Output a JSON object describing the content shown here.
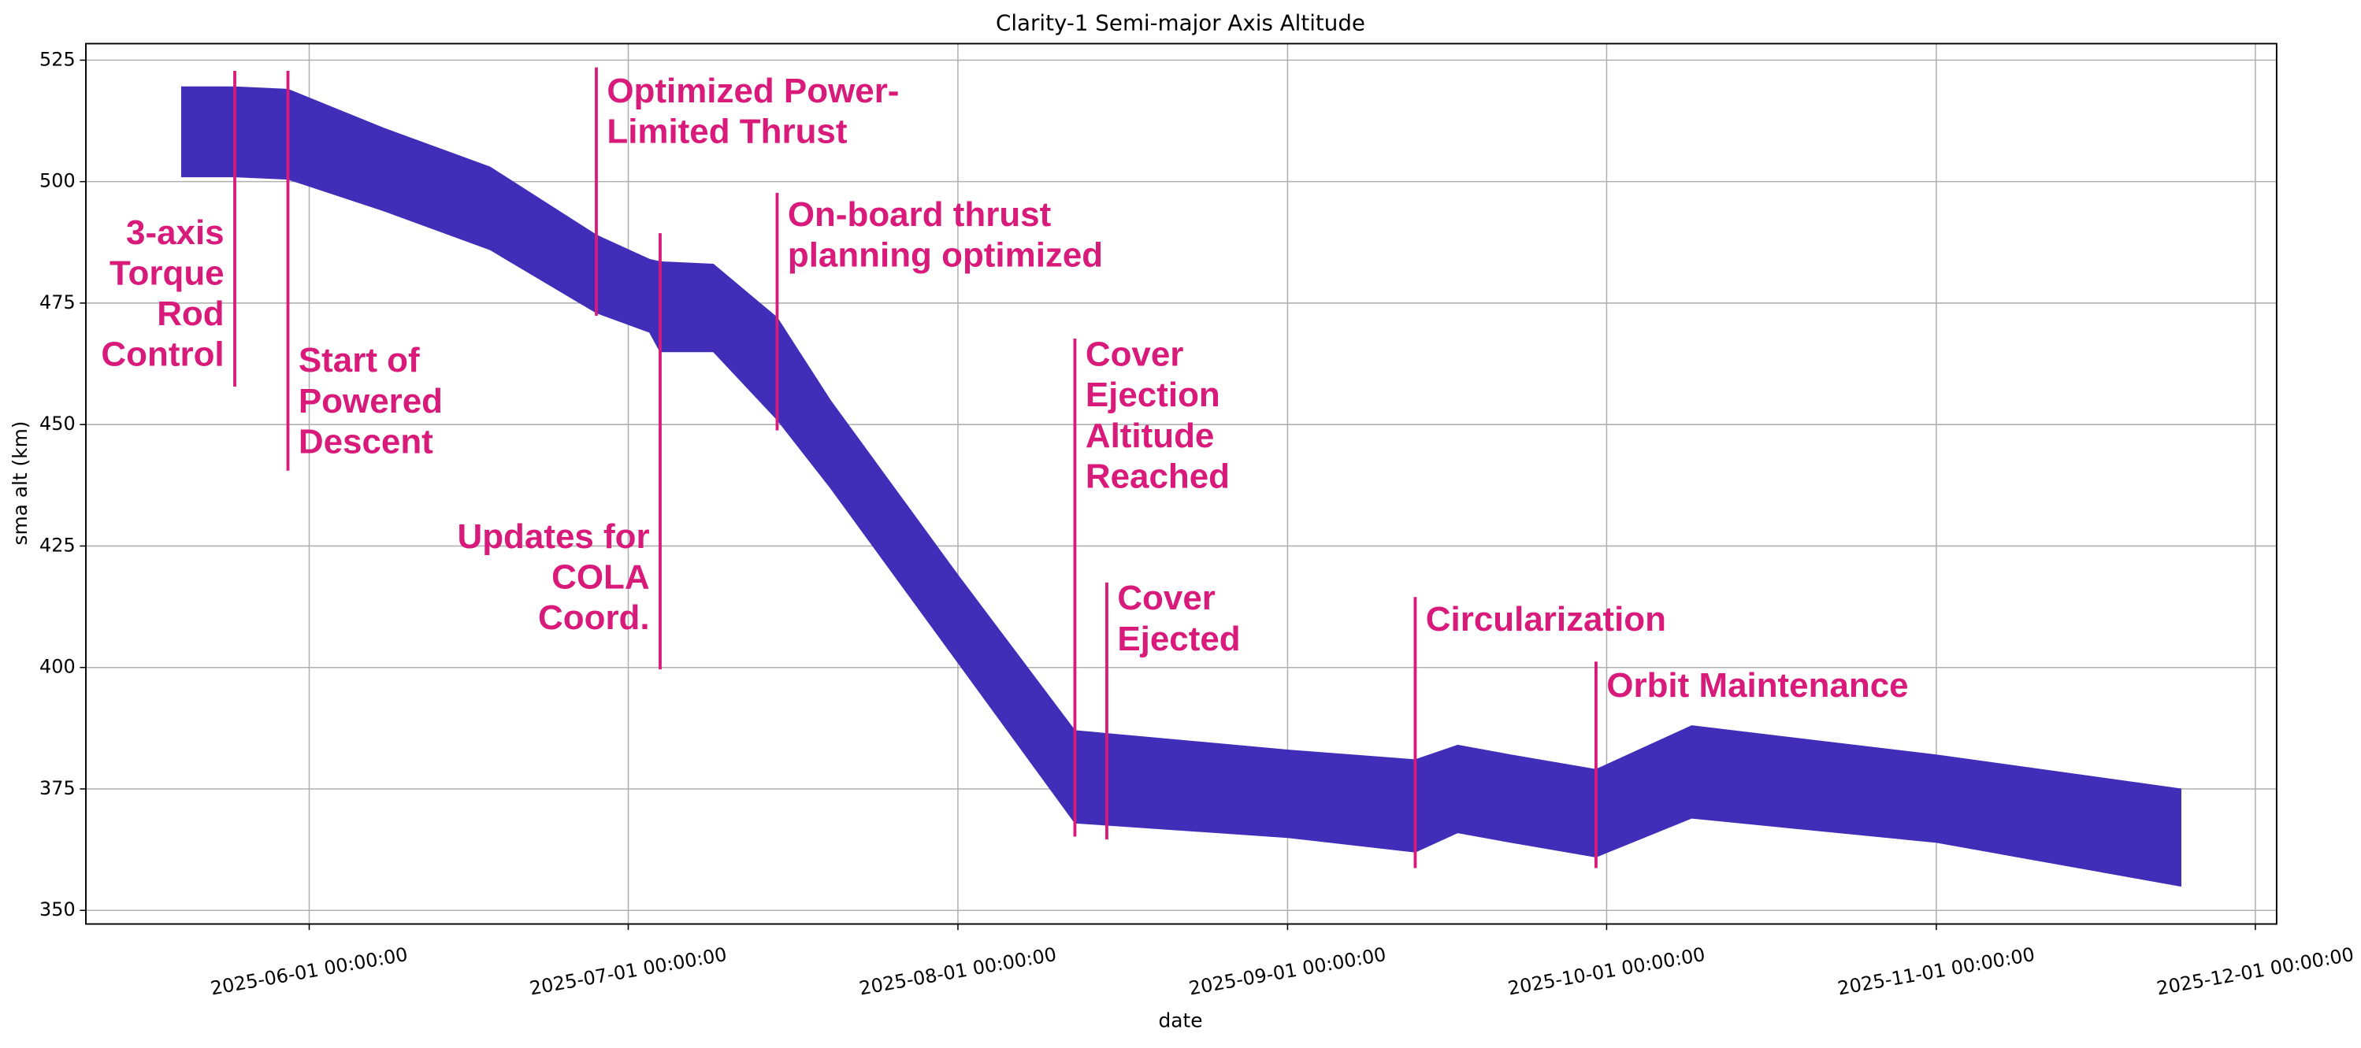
{
  "chart_data": {
    "type": "band",
    "title": "Clarity-1 Semi-major Axis Altitude",
    "x_label": "date",
    "y_label": "sma alt (km)",
    "color": "#412eb8",
    "annotation_color": "#d81b7a",
    "grid": true,
    "x": [
      "2025-05-20",
      "2025-05-25",
      "2025-05-30",
      "2025-06-08",
      "2025-06-18",
      "2025-06-28",
      "2025-07-03",
      "2025-07-04",
      "2025-07-09",
      "2025-07-15",
      "2025-07-20",
      "2025-08-01",
      "2025-08-12",
      "2025-09-01",
      "2025-09-13",
      "2025-09-17",
      "2025-09-22",
      "2025-09-30",
      "2025-10-09",
      "2025-11-01",
      "2025-11-24"
    ],
    "high": [
      519.5,
      519.5,
      519,
      511,
      503,
      489,
      484,
      483.5,
      483,
      472,
      455,
      419,
      387,
      383,
      381,
      384,
      382,
      379,
      388,
      382,
      375
    ],
    "low": [
      501,
      501,
      500.5,
      494,
      486,
      473,
      469,
      465,
      465,
      451,
      437,
      401,
      368,
      365,
      362,
      366,
      364,
      361,
      369,
      364,
      355
    ],
    "xlim": [
      "2025-05-11",
      "2025-12-03"
    ],
    "ylim": [
      347.2,
      528.4
    ],
    "xticks": [
      "2025-06-01 00:00:00",
      "2025-07-01 00:00:00",
      "2025-08-01 00:00:00",
      "2025-09-01 00:00:00",
      "2025-10-01 00:00:00",
      "2025-11-01 00:00:00",
      "2025-12-01 00:00:00"
    ],
    "yticks": [
      350,
      375,
      400,
      425,
      450,
      475,
      500,
      525
    ],
    "annotations": [
      {
        "text": [
          "3-axis",
          "Torque",
          "Rod",
          "Control"
        ],
        "x": "2025-05-25",
        "y_top": 522.8,
        "y_bottom": 457.8
      },
      {
        "text": [
          "Start of",
          "Powered",
          "Descent"
        ],
        "x": "2025-05-30",
        "y_top": 522.8,
        "y_bottom": 440.5
      },
      {
        "text": [
          "Optimized Power-",
          "Limited Thrust"
        ],
        "x": "2025-06-28",
        "y_top": 523.5,
        "y_bottom": 472.4
      },
      {
        "text": [
          "Updates for",
          "COLA",
          "Coord."
        ],
        "x": "2025-07-04",
        "y_top": 489.4,
        "y_bottom": 399.6
      },
      {
        "text": [
          "On-board thrust",
          "planning optimized"
        ],
        "x": "2025-07-15",
        "y_top": 497.7,
        "y_bottom": 448.8
      },
      {
        "text": [
          "Cover",
          "Ejection",
          "Altitude",
          "Reached"
        ],
        "x": "2025-08-12",
        "y_top": 467.7,
        "y_bottom": 365.2
      },
      {
        "text": [
          "Cover",
          "Ejected"
        ],
        "x": "2025-08-15",
        "y_top": 417.5,
        "y_bottom": 364.6
      },
      {
        "text": [
          "Circularization"
        ],
        "x": "2025-09-13",
        "y_top": 414.5,
        "y_bottom": 358.7
      },
      {
        "text": [
          "Orbit Maintenance"
        ],
        "x": "2025-09-30",
        "y_top": 401.2,
        "y_bottom": 358.7
      }
    ]
  }
}
